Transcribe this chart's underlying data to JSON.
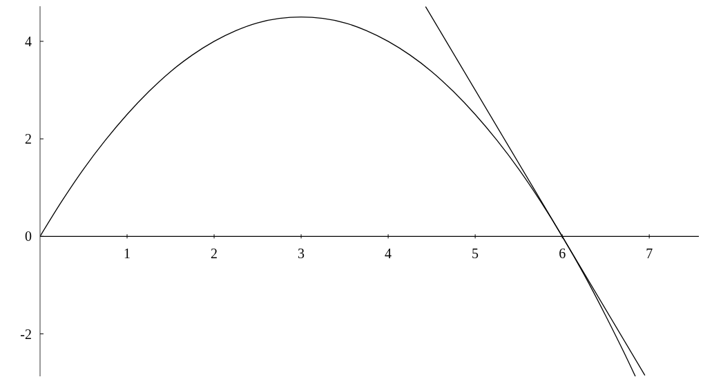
{
  "chart_data": {
    "type": "line",
    "series": [
      {
        "color": "#000000",
        "x": [
          0,
          0.25,
          0.5,
          0.75,
          1,
          1.25,
          1.5,
          1.75,
          2,
          2.25,
          2.5,
          2.75,
          3,
          3.25,
          3.5,
          3.75,
          4,
          4.25,
          4.5,
          4.75,
          5,
          5.25,
          5.5,
          5.75,
          6,
          6.25,
          6.5,
          6.75,
          6.84
        ],
        "values": [
          0,
          0.72,
          1.38,
          1.97,
          2.5,
          2.97,
          3.38,
          3.72,
          4,
          4.22,
          4.38,
          4.47,
          4.5,
          4.47,
          4.38,
          4.22,
          4,
          3.72,
          3.38,
          2.97,
          2.5,
          1.97,
          1.38,
          0.72,
          0,
          -0.78,
          -1.63,
          -2.53,
          -2.87
        ]
      },
      {
        "color": "#000000",
        "x": [
          4.43,
          6.95
        ],
        "values": [
          4.71,
          -2.85
        ]
      }
    ],
    "xlim": [
      0,
      7.57
    ],
    "ylim": [
      -2.87,
      4.72
    ],
    "xticks": [
      1,
      2,
      3,
      4,
      5,
      6,
      7
    ],
    "yticks": [
      -2,
      0,
      2,
      4
    ],
    "marker": "none",
    "line_style": "solid"
  }
}
